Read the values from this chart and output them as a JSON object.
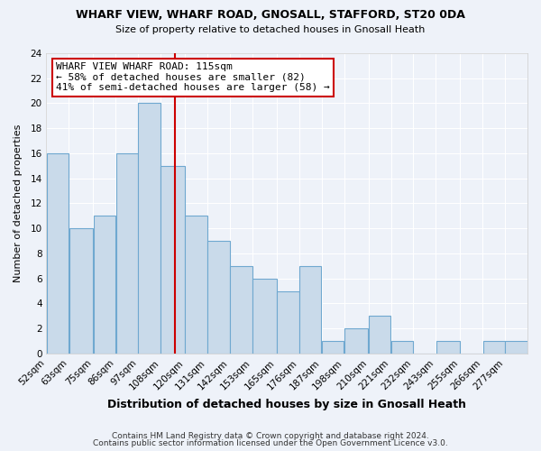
{
  "title1": "WHARF VIEW, WHARF ROAD, GNOSALL, STAFFORD, ST20 0DA",
  "title2": "Size of property relative to detached houses in Gnosall Heath",
  "xlabel": "Distribution of detached houses by size in Gnosall Heath",
  "ylabel": "Number of detached properties",
  "bin_labels": [
    "52sqm",
    "63sqm",
    "75sqm",
    "86sqm",
    "97sqm",
    "108sqm",
    "120sqm",
    "131sqm",
    "142sqm",
    "153sqm",
    "165sqm",
    "176sqm",
    "187sqm",
    "198sqm",
    "210sqm",
    "221sqm",
    "232sqm",
    "243sqm",
    "255sqm",
    "266sqm",
    "277sqm"
  ],
  "bin_edges": [
    52,
    63,
    75,
    86,
    97,
    108,
    120,
    131,
    142,
    153,
    165,
    176,
    187,
    198,
    210,
    221,
    232,
    243,
    255,
    266,
    277,
    288
  ],
  "counts": [
    16,
    10,
    11,
    16,
    20,
    15,
    11,
    9,
    7,
    6,
    5,
    7,
    1,
    2,
    3,
    1,
    0,
    1,
    0,
    1,
    1
  ],
  "bar_facecolor": "#c9daea",
  "bar_edgecolor": "#6fa8d0",
  "vline_x": 115,
  "vline_color": "#cc0000",
  "annotation_title": "WHARF VIEW WHARF ROAD: 115sqm",
  "annotation_line1": "← 58% of detached houses are smaller (82)",
  "annotation_line2": "41% of semi-detached houses are larger (58) →",
  "annotation_box_edgecolor": "#cc0000",
  "annotation_box_facecolor": "#ffffff",
  "ylim": [
    0,
    24
  ],
  "yticks": [
    0,
    2,
    4,
    6,
    8,
    10,
    12,
    14,
    16,
    18,
    20,
    22,
    24
  ],
  "footer1": "Contains HM Land Registry data © Crown copyright and database right 2024.",
  "footer2": "Contains public sector information licensed under the Open Government Licence v3.0.",
  "background_color": "#eef2f9"
}
